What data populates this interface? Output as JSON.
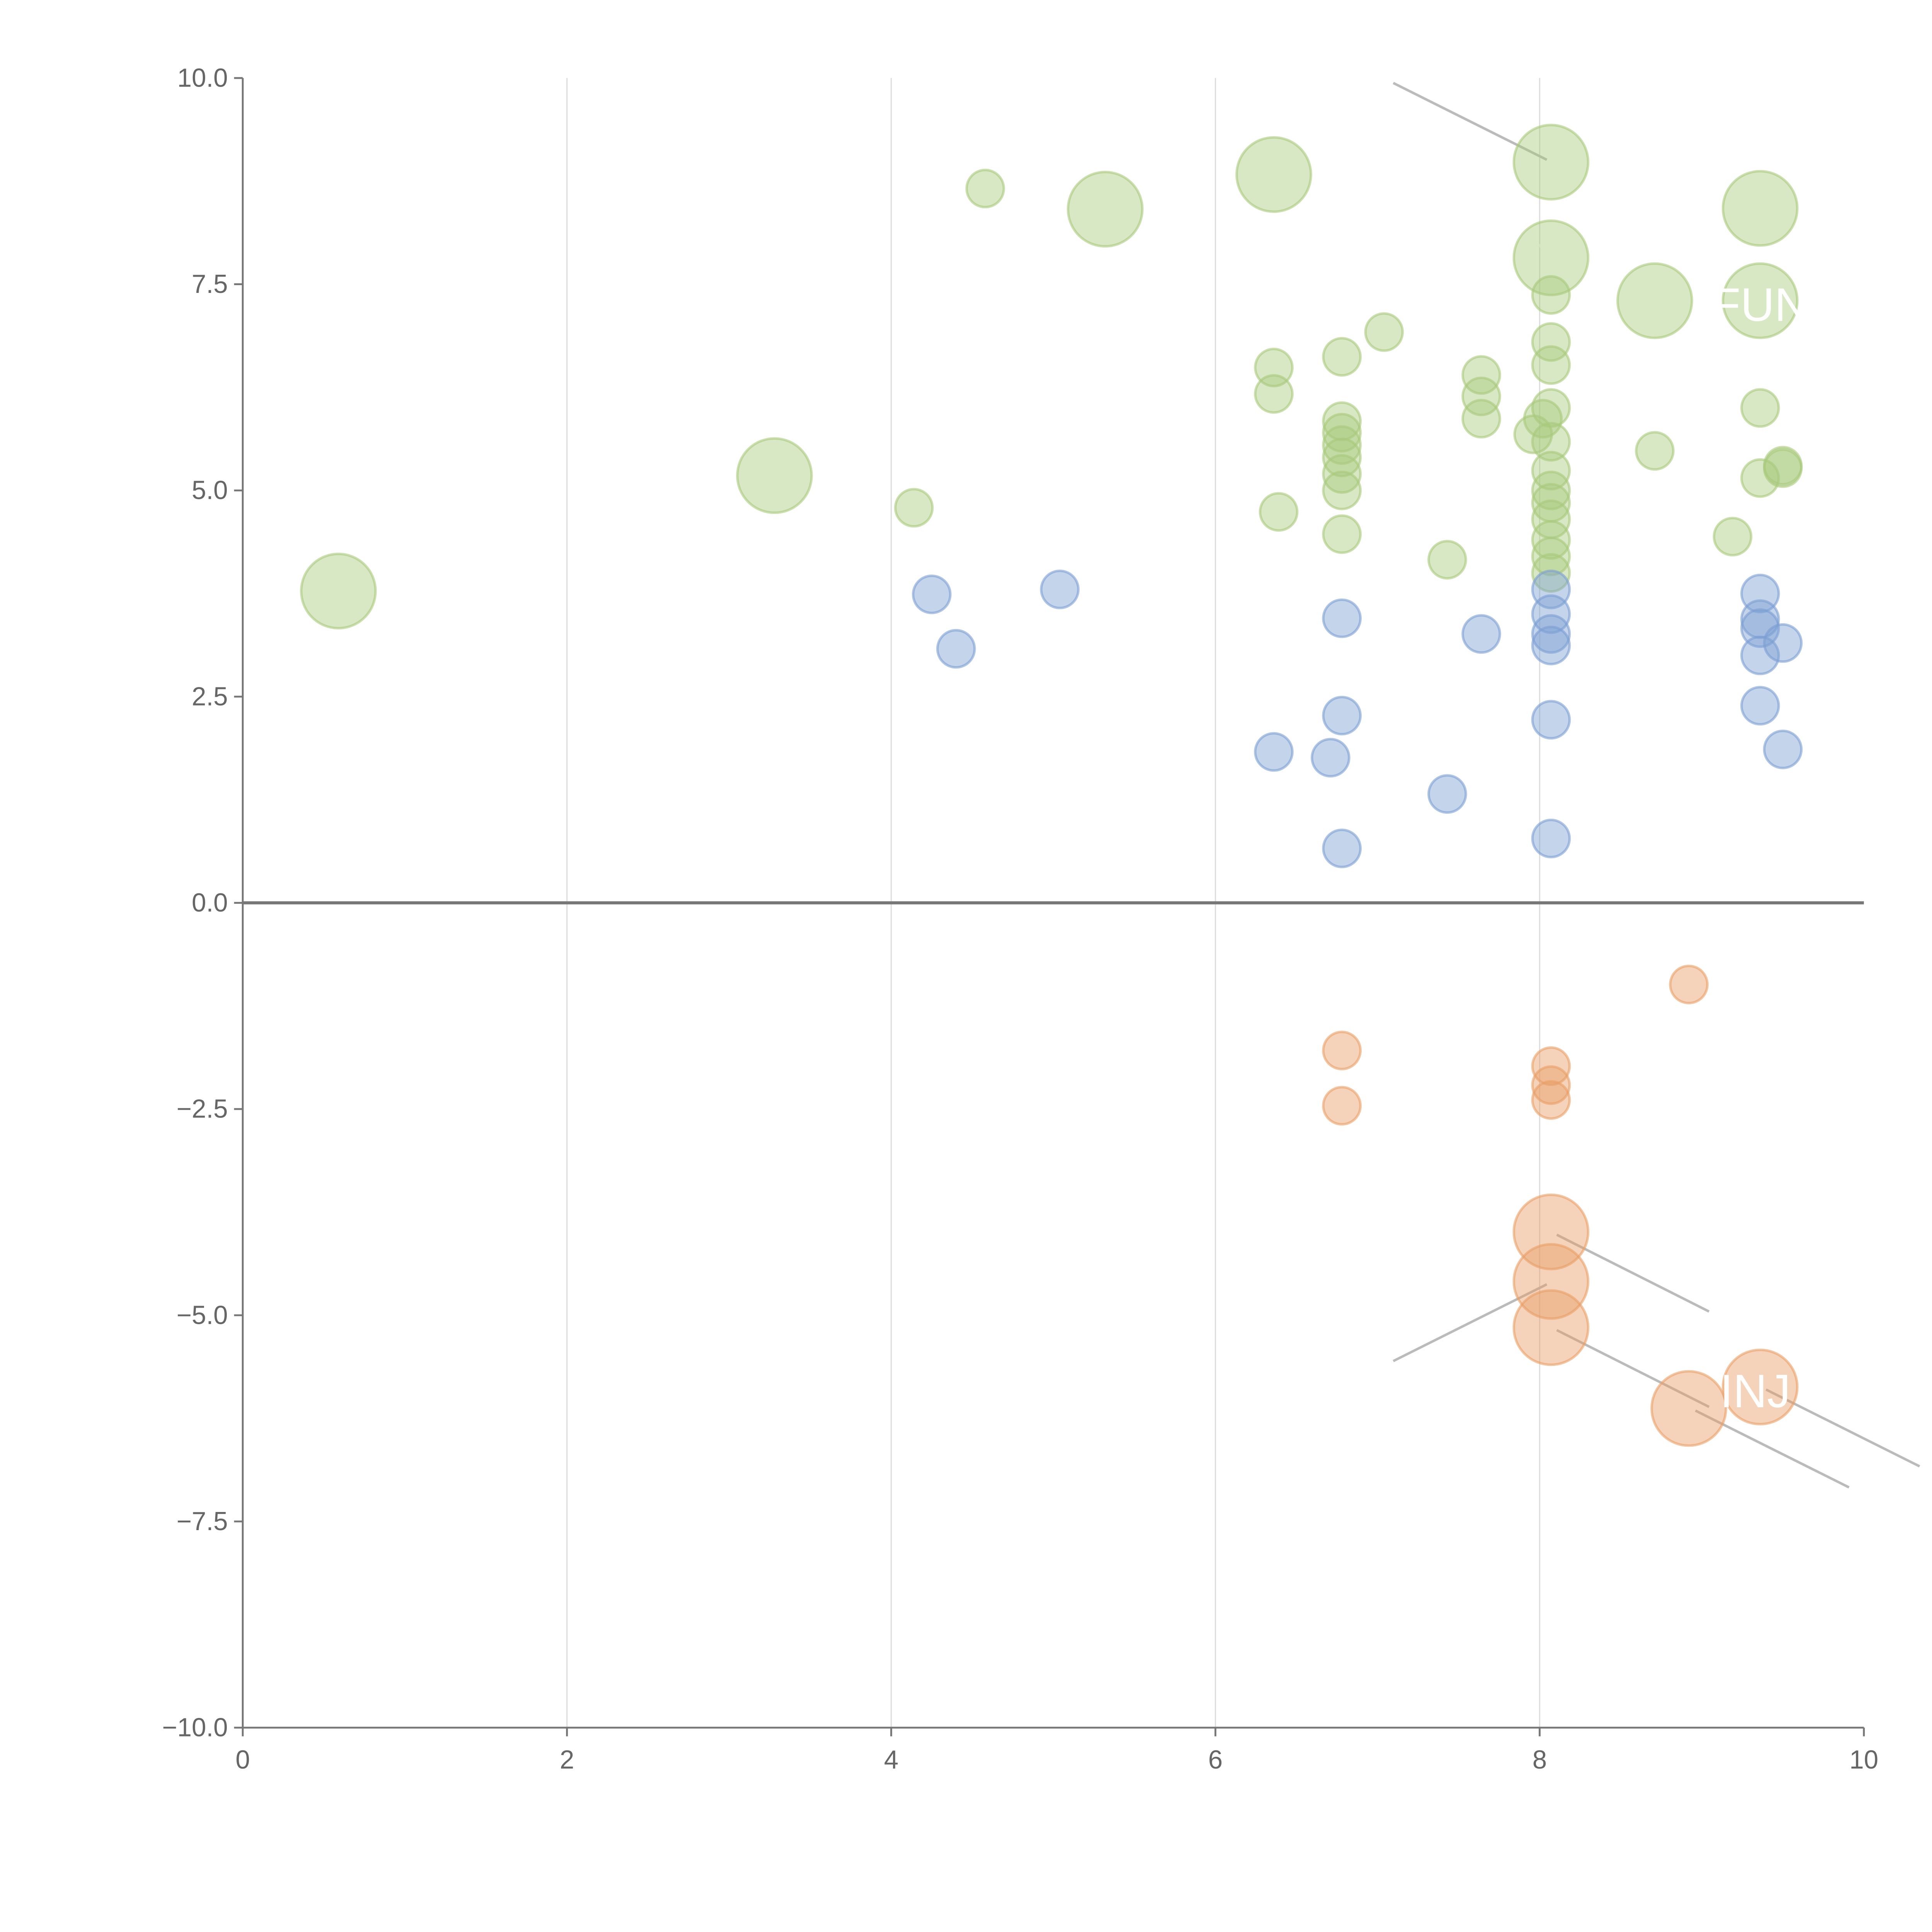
{
  "chart_data": {
    "type": "scatter",
    "title": "",
    "xlabel": "",
    "ylabel": "",
    "xlim": [
      0,
      10
    ],
    "ylim": [
      -10,
      10
    ],
    "grid": "vertical",
    "x_ticks": [
      "0",
      "2",
      "4",
      "6",
      "8",
      "10"
    ],
    "y_ticks": [
      "10.0",
      "7.5",
      "5.0",
      "2.5",
      "0.0",
      "−2.5",
      "−5.0",
      "−7.5",
      "−10.0"
    ],
    "colors": {
      "green": "#a9c97c",
      "blue": "#7c9fd2",
      "orange": "#e99e66"
    },
    "series": [
      {
        "name": "green",
        "color": "#a9c97c",
        "points": [
          [
            4.58,
            8.66,
            1
          ],
          [
            4.14,
            4.79,
            1
          ],
          [
            6.36,
            6.49,
            1
          ],
          [
            6.36,
            6.17,
            1
          ],
          [
            6.39,
            4.74,
            1
          ],
          [
            6.78,
            6.62,
            1
          ],
          [
            6.78,
            5.84,
            1
          ],
          [
            6.78,
            5.7,
            1
          ],
          [
            6.78,
            5.55,
            1
          ],
          [
            6.78,
            5.4,
            1
          ],
          [
            6.78,
            5.2,
            1
          ],
          [
            6.78,
            5.0,
            1
          ],
          [
            6.78,
            4.47,
            1
          ],
          [
            7.04,
            6.92,
            1
          ],
          [
            7.64,
            6.4,
            1
          ],
          [
            7.64,
            6.14,
            1
          ],
          [
            7.64,
            5.87,
            1
          ],
          [
            7.43,
            4.16,
            1
          ],
          [
            8.07,
            7.37,
            1
          ],
          [
            8.07,
            6.8,
            1
          ],
          [
            8.07,
            6.52,
            1
          ],
          [
            8.07,
            6.0,
            1
          ],
          [
            8.02,
            5.87,
            1
          ],
          [
            7.96,
            5.68,
            1
          ],
          [
            8.07,
            5.59,
            1
          ],
          [
            8.07,
            5.24,
            1
          ],
          [
            8.07,
            5.0,
            1
          ],
          [
            8.07,
            4.85,
            1
          ],
          [
            8.07,
            4.65,
            1
          ],
          [
            8.07,
            4.4,
            1
          ],
          [
            8.07,
            4.2,
            1
          ],
          [
            8.07,
            4.0,
            1
          ],
          [
            8.71,
            5.48,
            1
          ],
          [
            9.36,
            6.0,
            1
          ],
          [
            9.36,
            5.15,
            1
          ],
          [
            9.19,
            4.44,
            1
          ],
          [
            9.5,
            5.3,
            1
          ],
          [
            9.5,
            5.27,
            1
          ],
          [
            0.59,
            3.78,
            2
          ],
          [
            3.28,
            5.18,
            2
          ],
          [
            5.32,
            8.41,
            2
          ],
          [
            6.36,
            8.83,
            2
          ],
          [
            8.07,
            8.98,
            2
          ],
          [
            8.07,
            7.82,
            2
          ],
          [
            8.71,
            7.3,
            2
          ],
          [
            9.36,
            7.3,
            2
          ],
          [
            9.36,
            8.42,
            2
          ]
        ]
      },
      {
        "name": "blue",
        "color": "#7c9fd2",
        "points": [
          [
            4.25,
            3.74,
            1
          ],
          [
            4.4,
            3.08,
            1
          ],
          [
            5.04,
            3.8,
            1
          ],
          [
            6.78,
            3.45,
            1
          ],
          [
            6.78,
            2.27,
            1
          ],
          [
            6.36,
            1.83,
            1
          ],
          [
            6.71,
            1.76,
            1
          ],
          [
            6.78,
            0.66,
            1
          ],
          [
            7.43,
            1.32,
            1
          ],
          [
            7.64,
            3.26,
            1
          ],
          [
            8.07,
            3.8,
            1
          ],
          [
            8.07,
            3.5,
            1
          ],
          [
            8.07,
            3.26,
            1
          ],
          [
            8.07,
            3.12,
            1
          ],
          [
            8.07,
            2.22,
            1
          ],
          [
            8.07,
            0.78,
            1
          ],
          [
            9.36,
            3.75,
            1
          ],
          [
            9.36,
            3.44,
            1
          ],
          [
            9.36,
            3.33,
            1
          ],
          [
            9.36,
            3.0,
            1
          ],
          [
            9.5,
            3.15,
            1
          ],
          [
            9.36,
            2.39,
            1
          ],
          [
            9.5,
            1.86,
            1
          ]
        ]
      },
      {
        "name": "orange",
        "color": "#e99e66",
        "points": [
          [
            8.92,
            -0.99,
            1
          ],
          [
            6.78,
            -1.79,
            1
          ],
          [
            6.78,
            -2.46,
            1
          ],
          [
            8.07,
            -1.98,
            1
          ],
          [
            8.07,
            -2.21,
            1
          ],
          [
            8.07,
            -2.39,
            1
          ],
          [
            8.07,
            -3.99,
            2
          ],
          [
            8.07,
            -4.59,
            2
          ],
          [
            8.07,
            -5.15,
            2
          ],
          [
            8.92,
            -6.13,
            2
          ],
          [
            9.36,
            -5.87,
            2
          ]
        ]
      }
    ],
    "annotations": [
      {
        "text": "FUN",
        "x": 9.36,
        "y": 7.25
      },
      {
        "text": "INJ",
        "x": 9.33,
        "y": -5.92
      }
    ]
  }
}
